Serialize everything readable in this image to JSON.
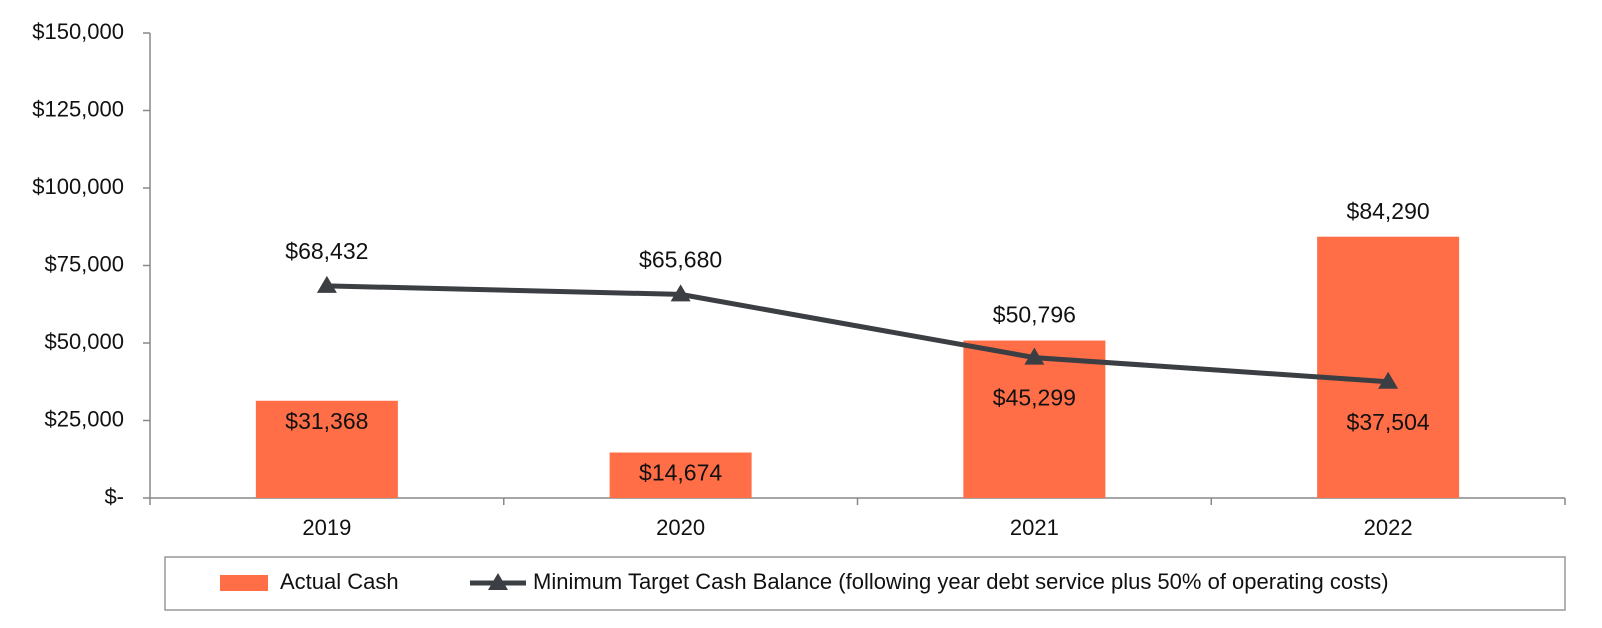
{
  "chart_data": {
    "type": "bar_line",
    "categories": [
      "2019",
      "2020",
      "2021",
      "2022"
    ],
    "series": [
      {
        "name": "Actual Cash",
        "type": "bar",
        "color": "#ff6e47",
        "values": [
          31368,
          14674,
          50796,
          84290
        ],
        "value_labels": [
          "$31,368",
          "$14,674",
          "$50,796",
          "$84,290"
        ]
      },
      {
        "name": "Minimum Target Cash Balance (following year debt service plus 50% of operating costs)",
        "type": "line",
        "color": "#3b3e42",
        "values": [
          68432,
          65680,
          45299,
          37504
        ],
        "value_labels": [
          "$68,432",
          "$65,680",
          "$45,299",
          "$37,504"
        ]
      }
    ],
    "ylim": [
      0,
      150000
    ],
    "yticks": [
      {
        "value": 0,
        "label": "$-"
      },
      {
        "value": 25000,
        "label": "$25,000"
      },
      {
        "value": 50000,
        "label": "$50,000"
      },
      {
        "value": 75000,
        "label": "$75,000"
      },
      {
        "value": 100000,
        "label": "$100,000"
      },
      {
        "value": 125000,
        "label": "$125,000"
      },
      {
        "value": 150000,
        "label": "$150,000"
      }
    ],
    "grid": false,
    "legend": "bottom"
  }
}
